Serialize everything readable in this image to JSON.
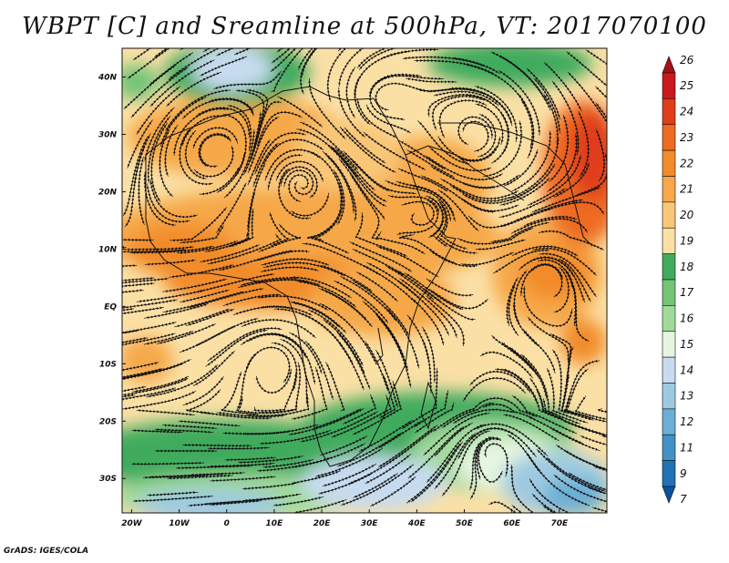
{
  "title": "WBPT [C] and Sreamline at 500hPa, VT: 2017070100",
  "footer": "GrADS: IGES/COLA",
  "map": {
    "lon_range": [
      -22,
      80
    ],
    "lat_range": [
      -36,
      45
    ],
    "lat_ticks": [
      "40N",
      "30N",
      "20N",
      "10N",
      "EQ",
      "10S",
      "20S",
      "30S"
    ],
    "lon_ticks": [
      "20W",
      "10W",
      "0",
      "10E",
      "20E",
      "30E",
      "40E",
      "50E",
      "60E",
      "70E"
    ]
  },
  "colorbar": {
    "labels": [
      "26",
      "25",
      "24",
      "23",
      "22",
      "21",
      "20",
      "19",
      "18",
      "17",
      "16",
      "15",
      "14",
      "13",
      "12",
      "11",
      "9",
      "7"
    ],
    "colors": [
      "#a50f15",
      "#cb181d",
      "#e03d1a",
      "#ef6b21",
      "#f28c2a",
      "#f6a84a",
      "#f9c677",
      "#fbe0a6",
      "#41ab5d",
      "#74c476",
      "#a1d99b",
      "#e5f5e0",
      "#c6dbef",
      "#9ecae1",
      "#6baed6",
      "#4292c6",
      "#2171b5",
      "#08519c"
    ]
  }
}
